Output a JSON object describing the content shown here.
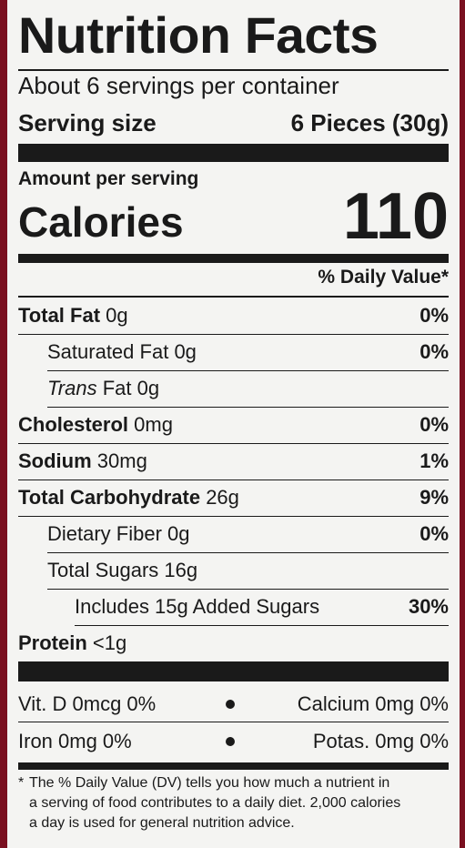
{
  "header": {
    "title": "Nutrition Facts",
    "servings": "About 6 servings per container",
    "serving_size_label": "Serving size",
    "serving_size_value": "6 Pieces (30g)"
  },
  "calories": {
    "amount_label": "Amount per serving",
    "label": "Calories",
    "value": "110"
  },
  "daily_value_header": "% Daily Value*",
  "nutrients": [
    {
      "name": "Total Fat",
      "amount": "0g",
      "dv": "0%"
    },
    {
      "name": "Saturated Fat",
      "amount": "0g",
      "dv": "0%"
    },
    {
      "name": "Trans",
      "amount": "Fat 0g"
    },
    {
      "name": "Cholesterol",
      "amount": "0mg",
      "dv": "0%"
    },
    {
      "name": "Sodium",
      "amount": "30mg",
      "dv": "1%"
    },
    {
      "name": "Total Carbohydrate",
      "amount": "26g",
      "dv": "9%"
    },
    {
      "name": "Dietary Fiber",
      "amount": "0g",
      "dv": "0%"
    },
    {
      "name": "Total Sugars",
      "amount": "16g"
    },
    {
      "name": "Includes 15g Added Sugars",
      "dv": "30%"
    },
    {
      "name": "Protein",
      "amount": "<1g"
    }
  ],
  "vitamins": [
    [
      "Vit. D 0mcg 0%",
      "Calcium 0mg 0%"
    ],
    [
      "Iron 0mg 0%",
      "Potas. 0mg 0%"
    ]
  ],
  "footnote": {
    "marker": "*",
    "lines": [
      "The % Daily Value (DV) tells you how much a nutrient in",
      "a serving of food contributes to a daily diet. 2,000 calories",
      "a day is used for general nutrition advice."
    ]
  }
}
